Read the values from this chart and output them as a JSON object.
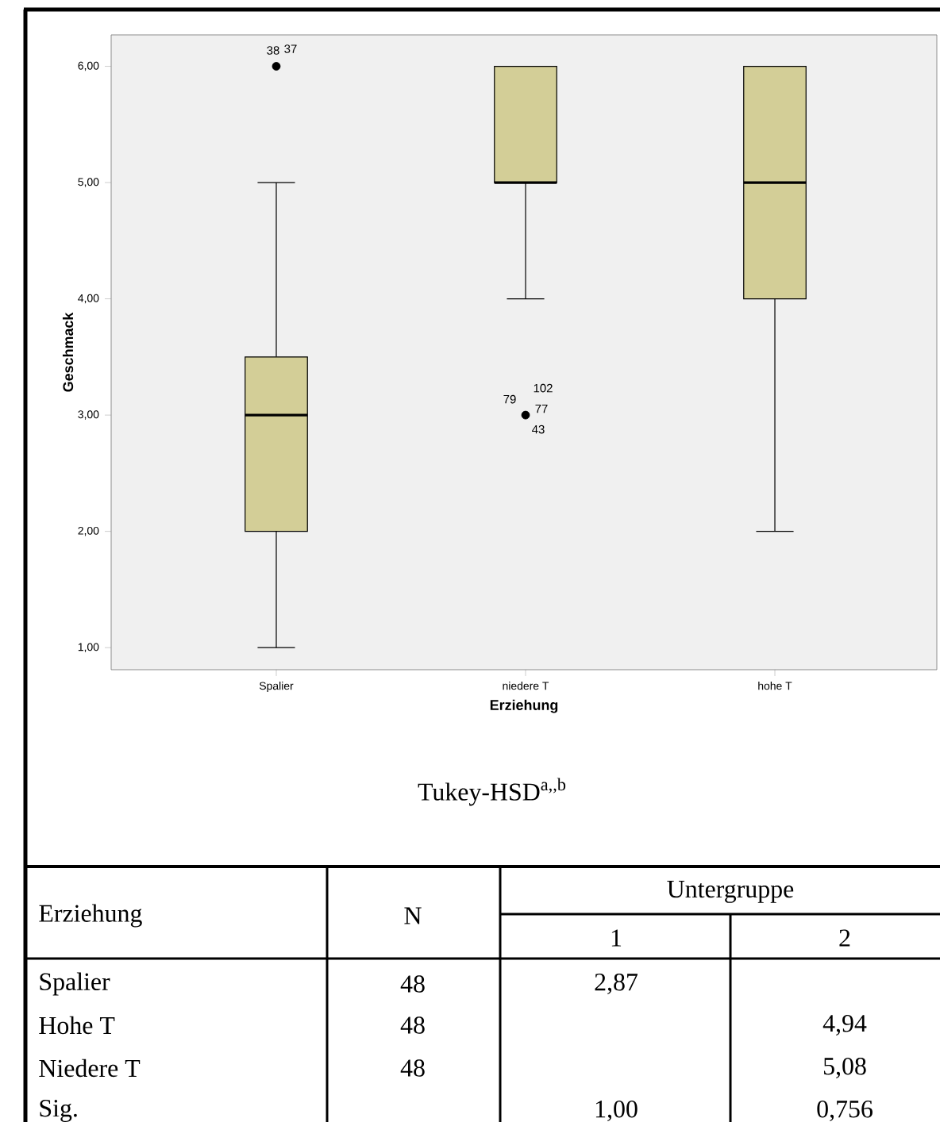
{
  "chart_data": [
    {
      "type": "box",
      "xlabel": "Erziehung",
      "ylabel": "Geschmack",
      "categories": [
        "Spalier",
        "niedere T",
        "hohe T"
      ],
      "boxes": [
        {
          "low": 1,
          "q1": 2,
          "median": 3,
          "q3": 3.5,
          "high": 5,
          "outliers": [
            6
          ]
        },
        {
          "low": 4,
          "q1": 5,
          "median": 5,
          "q3": 6,
          "high": 6,
          "outliers": [
            3
          ]
        },
        {
          "low": 2,
          "q1": 4,
          "median": 5,
          "q3": 6,
          "high": 6
        }
      ],
      "color": "#d3ce97",
      "ylim": [
        0.81,
        6.27
      ],
      "yticks": [
        {
          "value": 1,
          "label": "1,00"
        },
        {
          "value": 2,
          "label": "2,00"
        },
        {
          "value": 3,
          "label": "3,00"
        },
        {
          "value": 4,
          "label": "4,00"
        },
        {
          "value": 5,
          "label": "5,00"
        },
        {
          "value": 6,
          "label": "6,00"
        }
      ],
      "grid": false,
      "annotations": [
        "38",
        "37",
        "79",
        "102",
        "77",
        "43"
      ]
    },
    {
      "type": "other",
      "title": "Tukey-HSD$^{a,,b}$",
      "annotations": [
        "Erziehung",
        "N",
        "Untergruppe",
        "1",
        "2",
        "Spalier",
        "48",
        "2,87",
        "Hohe T",
        "48",
        "4,94",
        "Niedere T",
        "48",
        "5,08",
        "Sig.",
        "1,00",
        "0,756"
      ]
    }
  ]
}
